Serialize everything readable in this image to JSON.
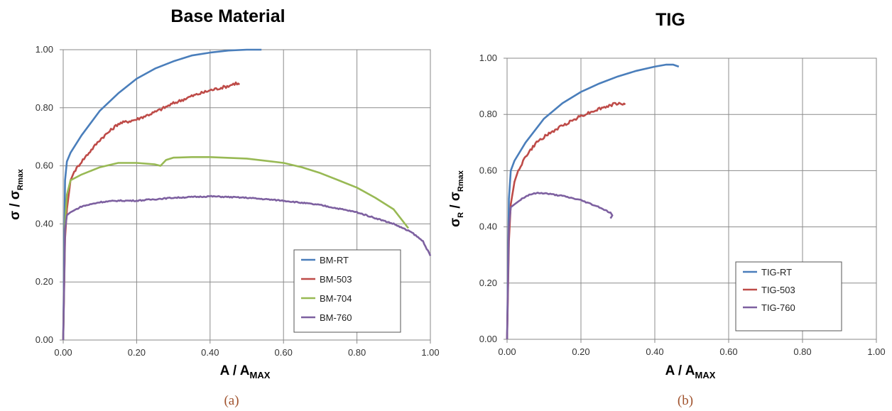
{
  "chart_data": [
    {
      "type": "line",
      "title": "Base Material",
      "xlabel": "A / A",
      "xlabel_sub": "MAX",
      "ylabel": "σ / σ",
      "ylabel_sub": "Rmax",
      "caption": "(a)",
      "xlim": [
        0,
        1
      ],
      "ylim": [
        0,
        1
      ],
      "grid": true,
      "legend": "bottom-right",
      "xticks": [
        "0.00",
        "0.20",
        "0.40",
        "0.60",
        "0.80",
        "1.00"
      ],
      "yticks": [
        "0.00",
        "0.20",
        "0.40",
        "0.60",
        "0.80",
        "1.00"
      ],
      "series": [
        {
          "name": "BM-RT",
          "color": "#4a7ebb",
          "jitter": 0,
          "x": [
            0,
            0.005,
            0.01,
            0.02,
            0.05,
            0.1,
            0.15,
            0.2,
            0.25,
            0.3,
            0.35,
            0.4,
            0.45,
            0.5,
            0.54
          ],
          "y": [
            0,
            0.55,
            0.615,
            0.645,
            0.705,
            0.79,
            0.85,
            0.9,
            0.935,
            0.96,
            0.98,
            0.99,
            0.997,
            1.0,
            1.0
          ]
        },
        {
          "name": "BM-503",
          "color": "#be4b48",
          "jitter": 0.005,
          "x": [
            0,
            0.005,
            0.01,
            0.02,
            0.03,
            0.05,
            0.1,
            0.15,
            0.2,
            0.25,
            0.3,
            0.35,
            0.4,
            0.45,
            0.47,
            0.48
          ],
          "y": [
            0,
            0.35,
            0.45,
            0.55,
            0.58,
            0.615,
            0.69,
            0.745,
            0.76,
            0.785,
            0.815,
            0.84,
            0.86,
            0.875,
            0.885,
            0.88
          ]
        },
        {
          "name": "BM-704",
          "color": "#98b954",
          "jitter": 0,
          "x": [
            0,
            0.005,
            0.01,
            0.02,
            0.05,
            0.1,
            0.15,
            0.2,
            0.25,
            0.265,
            0.28,
            0.3,
            0.35,
            0.4,
            0.5,
            0.6,
            0.65,
            0.7,
            0.75,
            0.8,
            0.85,
            0.9,
            0.94
          ],
          "y": [
            0,
            0.4,
            0.5,
            0.55,
            0.57,
            0.595,
            0.61,
            0.61,
            0.605,
            0.6,
            0.62,
            0.628,
            0.63,
            0.63,
            0.625,
            0.61,
            0.595,
            0.575,
            0.55,
            0.525,
            0.49,
            0.45,
            0.385
          ]
        },
        {
          "name": "BM-760",
          "color": "#7d60a0",
          "jitter": 0.002,
          "x": [
            0,
            0.005,
            0.01,
            0.02,
            0.05,
            0.1,
            0.15,
            0.2,
            0.3,
            0.4,
            0.5,
            0.6,
            0.7,
            0.8,
            0.9,
            0.95,
            0.98,
            1.0
          ],
          "y": [
            0,
            0.38,
            0.43,
            0.44,
            0.46,
            0.475,
            0.48,
            0.48,
            0.49,
            0.495,
            0.49,
            0.48,
            0.465,
            0.44,
            0.4,
            0.37,
            0.34,
            0.29
          ]
        }
      ]
    },
    {
      "type": "line",
      "title": "TIG",
      "xlabel": "A / A",
      "xlabel_sub": "MAX",
      "ylabel": "σ",
      "ylabel_sub": "R",
      "ylabel_mid": " / σ",
      "ylabel_sub2": "Rmax",
      "caption": "(b)",
      "xlim": [
        0,
        1
      ],
      "ylim": [
        0,
        1
      ],
      "grid": true,
      "legend": "bottom-right",
      "xticks": [
        "0.00",
        "0.20",
        "0.40",
        "0.60",
        "0.80",
        "1.00"
      ],
      "yticks": [
        "0.00",
        "0.20",
        "0.40",
        "0.60",
        "0.80",
        "1.00"
      ],
      "series": [
        {
          "name": "TIG-RT",
          "color": "#4a7ebb",
          "jitter": 0,
          "x": [
            0,
            0.005,
            0.01,
            0.02,
            0.05,
            0.1,
            0.15,
            0.2,
            0.25,
            0.3,
            0.35,
            0.4,
            0.43,
            0.45,
            0.465
          ],
          "y": [
            0,
            0.5,
            0.6,
            0.635,
            0.7,
            0.785,
            0.84,
            0.88,
            0.91,
            0.935,
            0.955,
            0.97,
            0.977,
            0.977,
            0.97
          ]
        },
        {
          "name": "TIG-503",
          "color": "#be4b48",
          "jitter": 0.005,
          "x": [
            0,
            0.005,
            0.01,
            0.02,
            0.03,
            0.05,
            0.08,
            0.1,
            0.15,
            0.2,
            0.25,
            0.3,
            0.32
          ],
          "y": [
            0,
            0.35,
            0.48,
            0.56,
            0.6,
            0.65,
            0.7,
            0.72,
            0.76,
            0.795,
            0.82,
            0.84,
            0.835
          ]
        },
        {
          "name": "TIG-760",
          "color": "#7d60a0",
          "jitter": 0.002,
          "x": [
            0,
            0.005,
            0.01,
            0.02,
            0.04,
            0.06,
            0.08,
            0.1,
            0.15,
            0.2,
            0.25,
            0.28,
            0.285,
            0.28
          ],
          "y": [
            0,
            0.4,
            0.47,
            0.48,
            0.5,
            0.515,
            0.52,
            0.52,
            0.51,
            0.495,
            0.47,
            0.45,
            0.44,
            0.43
          ]
        }
      ]
    }
  ]
}
